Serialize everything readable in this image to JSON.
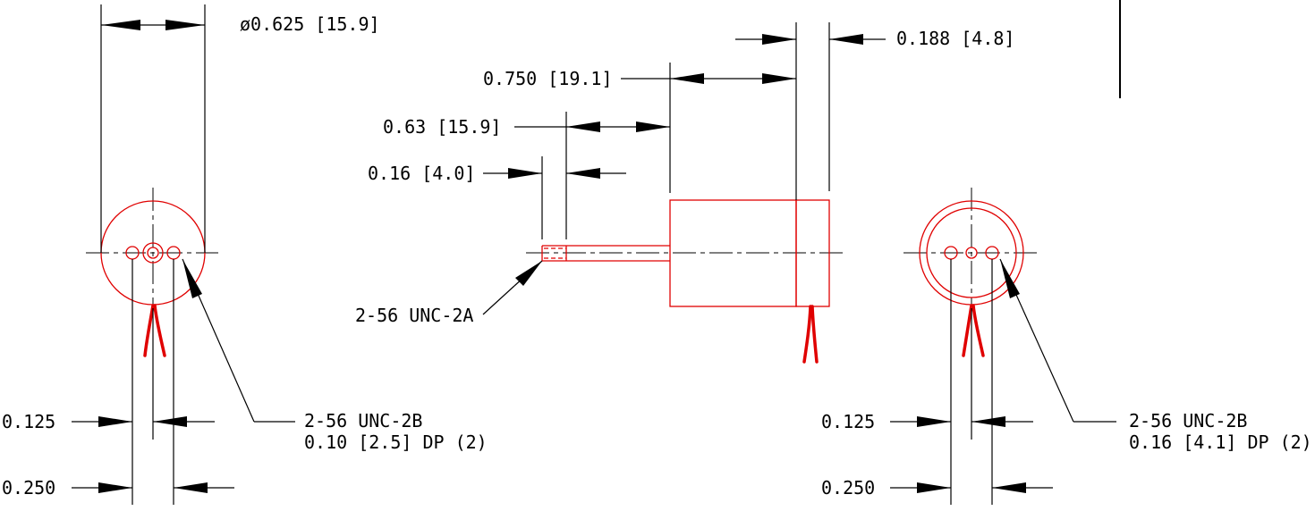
{
  "colors": {
    "part": "#e00000",
    "dimension": "#000000",
    "background": "#ffffff"
  },
  "dimensions": {
    "diameter": "ø0.625 [15.9]",
    "flange_thickness": "0.188 [4.8]",
    "body_length": "0.750 [19.1]",
    "shaft_length": "0.63 [15.9]",
    "thread_length": "0.16 [4.0]",
    "left_hole_center_offset": "0.125",
    "left_hole_spacing": "0.250",
    "right_hole_center_offset": "0.125",
    "right_hole_spacing": "0.250"
  },
  "callouts": {
    "shaft_thread": "2-56 UNC-2A",
    "left_holes_line1": "2-56 UNC-2B",
    "left_holes_line2": "0.10 [2.5] DP (2)",
    "right_holes_line1": "2-56 UNC-2B",
    "right_holes_line2": "0.16 [4.1] DP (2)"
  }
}
